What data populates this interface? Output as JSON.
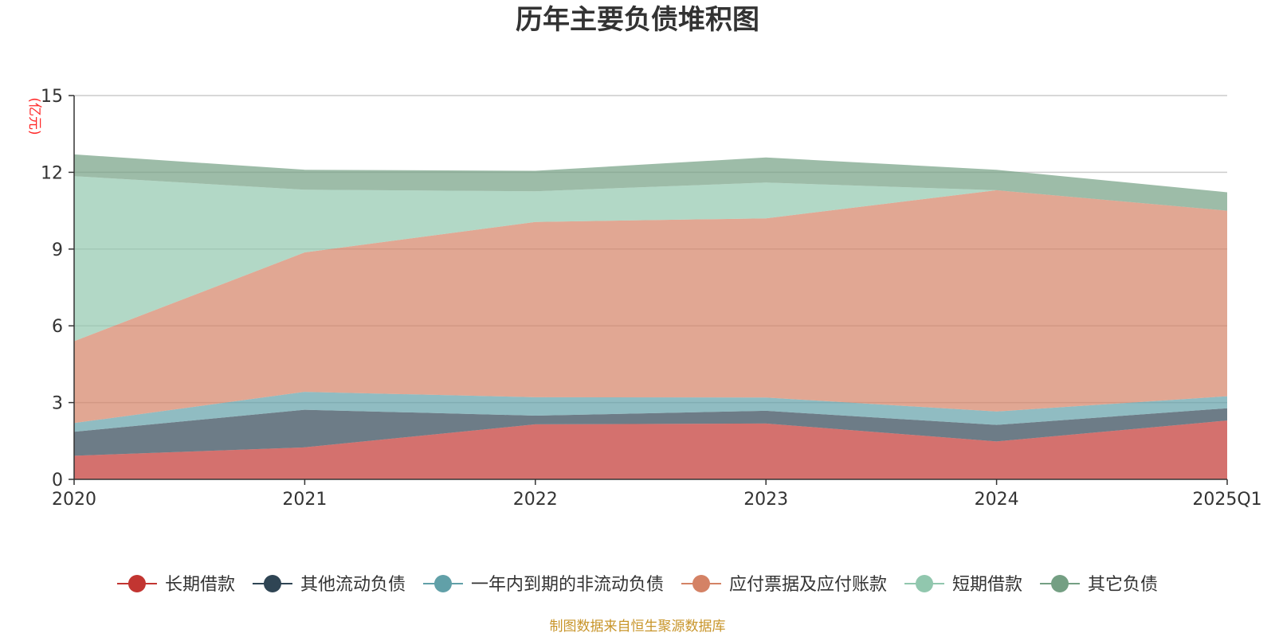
{
  "chart_data": {
    "type": "area",
    "stacked": true,
    "title": "历年主要负债堆积图",
    "ylabel": "(亿元)",
    "xlabel": "",
    "categories": [
      "2020",
      "2021",
      "2022",
      "2023",
      "2024",
      "2025Q1"
    ],
    "yticks": [
      0,
      3,
      6,
      9,
      12,
      15
    ],
    "ylim": [
      0,
      15
    ],
    "grid": true,
    "legend_position": "bottom",
    "series": [
      {
        "name": "长期借款",
        "color": "#c23531",
        "values": [
          0.92,
          1.25,
          2.15,
          2.18,
          1.48,
          2.3
        ]
      },
      {
        "name": "其他流动负债",
        "color": "#2f4554",
        "values": [
          0.94,
          1.47,
          0.34,
          0.5,
          0.65,
          0.48
        ]
      },
      {
        "name": "一年内到期的非流动负债",
        "color": "#61a0a8",
        "values": [
          0.34,
          0.7,
          0.72,
          0.52,
          0.52,
          0.47
        ]
      },
      {
        "name": "应付票据及应付账款",
        "color": "#d48265",
        "values": [
          3.2,
          5.45,
          6.85,
          7.0,
          8.65,
          7.25
        ]
      },
      {
        "name": "短期借款",
        "color": "#91c7ae",
        "values": [
          6.45,
          2.45,
          1.2,
          1.4,
          0.0,
          0.0
        ]
      },
      {
        "name": "其它负债",
        "color": "#749f83",
        "values": [
          0.85,
          0.78,
          0.8,
          0.98,
          0.8,
          0.72
        ]
      }
    ]
  },
  "source_note": "制图数据来自恒生聚源数据库"
}
